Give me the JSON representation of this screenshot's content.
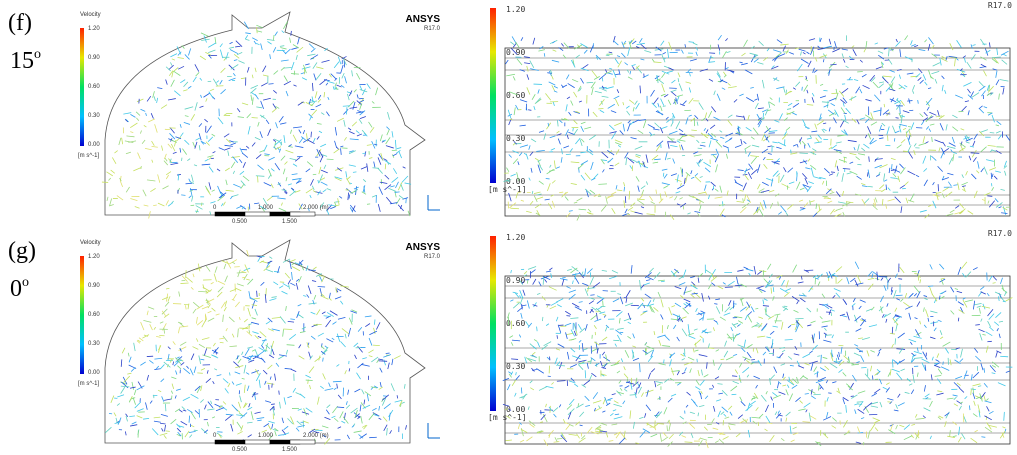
{
  "figure": {
    "rows": [
      {
        "label": "(f)",
        "angle": "15",
        "degree": "o",
        "left": {
          "legend_title": "Velocity",
          "legend_ticks": [
            "1.20",
            "0.90",
            "0.60",
            "0.30",
            "0.00"
          ],
          "legend_unit": "[m s^-1]",
          "brand": "ANSYS",
          "version": "R17.0",
          "scale_ticks": [
            "0",
            "1.000",
            "2.000 (m)"
          ],
          "scale_sub_ticks": [
            "0.500",
            "1.500"
          ]
        },
        "right": {
          "legend_ticks": [
            "1.20",
            "0.90",
            "0.60",
            "0.30",
            "0.00"
          ],
          "legend_unit": "[m s^-1]",
          "version": "R17.0"
        }
      },
      {
        "label": "(g)",
        "angle": "0",
        "degree": "o",
        "left": {
          "legend_title": "Velocity",
          "legend_ticks": [
            "1.20",
            "0.90",
            "0.60",
            "0.30",
            "0.00"
          ],
          "legend_unit": "[m s^-1]",
          "brand": "ANSYS",
          "version": "R17.0",
          "scale_ticks": [
            "0",
            "1.000",
            "2.000 (m)"
          ],
          "scale_sub_ticks": [
            "0.500",
            "1.500"
          ]
        },
        "right": {
          "legend_ticks": [
            "1.20",
            "0.90",
            "0.60",
            "0.30",
            "0.00"
          ],
          "legend_unit": "[m s^-1]",
          "version": "R17.0"
        }
      }
    ]
  }
}
